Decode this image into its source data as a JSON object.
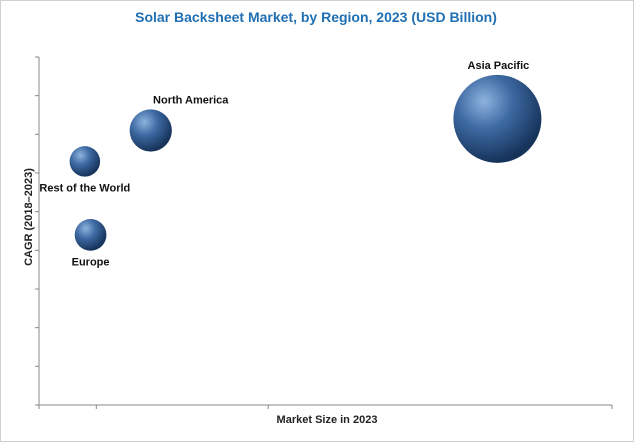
{
  "chart_data": {
    "type": "bubble",
    "title": "Solar Backsheet Market, by Region, 2023 (USD Billion)",
    "xlabel": "Market Size in 2023",
    "ylabel": "CAGR (2018–2023)",
    "xlim": [
      0,
      10
    ],
    "ylim": [
      0,
      9
    ],
    "grid": false,
    "axis_tick_labels_shown": false,
    "points": [
      {
        "label": "Asia Pacific",
        "x": 8.0,
        "y": 7.4,
        "size": 10.0
      },
      {
        "label": "North America",
        "x": 1.95,
        "y": 7.1,
        "size": 2.3
      },
      {
        "label": "Rest of the World",
        "x": 0.8,
        "y": 6.3,
        "size": 1.2
      },
      {
        "label": "Europe",
        "x": 0.9,
        "y": 4.4,
        "size": 1.3
      }
    ],
    "colors": {
      "bubble_light": "#8eb3de",
      "bubble_mid": "#3e6aa3",
      "bubble_dark": "#16335a",
      "title": "#1f6fb2"
    }
  }
}
